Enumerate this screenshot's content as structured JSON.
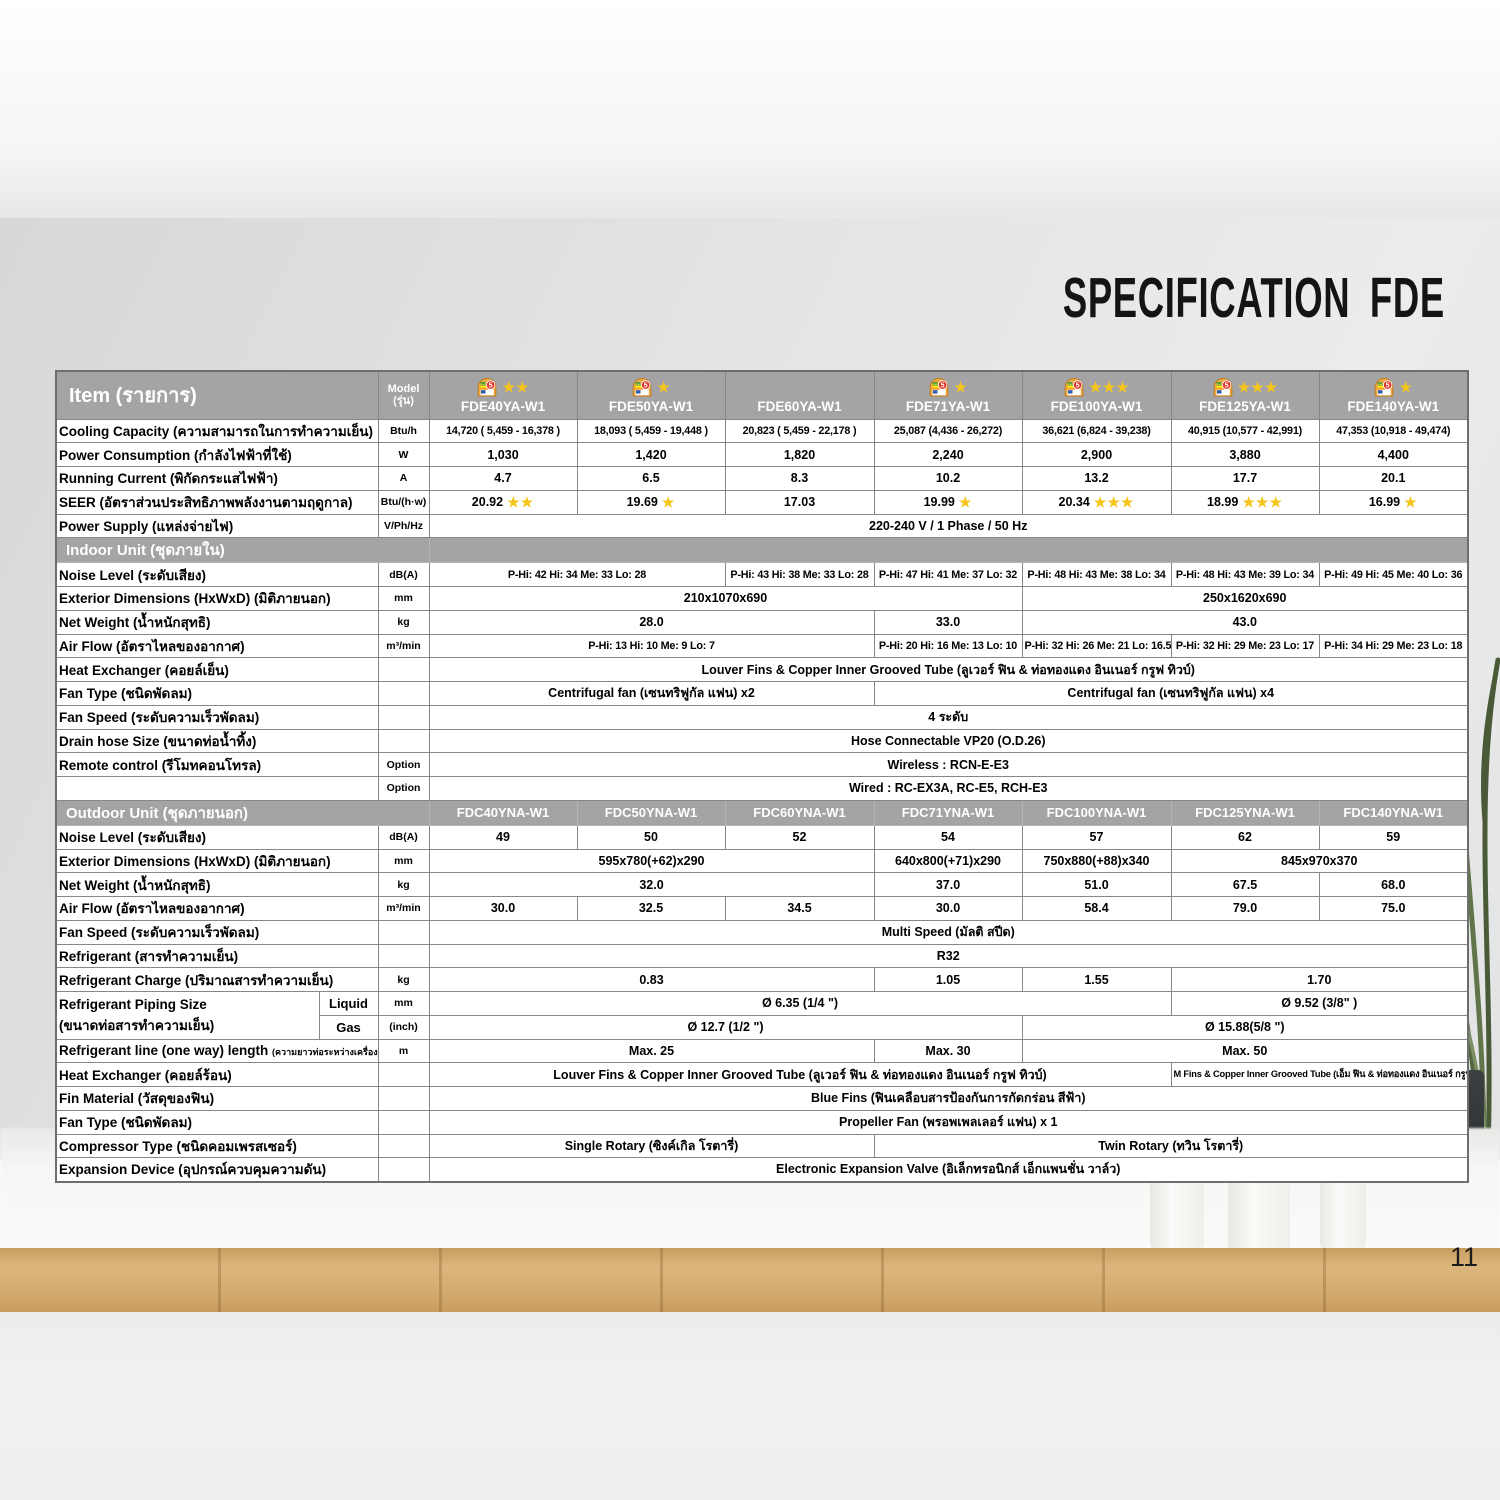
{
  "page": {
    "title": "SPECIFICATION FDE",
    "page_number": "11"
  },
  "colors": {
    "star_gold": "#F5C51C",
    "band_gray": "#A4A4A6",
    "wood": "#D2A76B",
    "title_color": "#141414"
  },
  "table": {
    "item_header": "Item (รายการ)",
    "model_header": "Model (รุ่น)",
    "indoor_models": [
      {
        "name": "FDE40YA-W1",
        "has_label": true,
        "stars": 2
      },
      {
        "name": "FDE50YA-W1",
        "has_label": true,
        "stars": 1
      },
      {
        "name": "FDE60YA-W1",
        "has_label": false,
        "stars": 0
      },
      {
        "name": "FDE71YA-W1",
        "has_label": true,
        "stars": 1
      },
      {
        "name": "FDE100YA-W1",
        "has_label": true,
        "stars": 3
      },
      {
        "name": "FDE125YA-W1",
        "has_label": true,
        "stars": 3
      },
      {
        "name": "FDE140YA-W1",
        "has_label": true,
        "stars": 1
      }
    ],
    "rows": [
      {
        "label": "Cooling Capacity (ความสามารถในการทำความเย็น)",
        "unit": "Btu/h",
        "cellClass": "xs",
        "cells": [
          {
            "t": "14,720 ( 5,459 - 16,378 )"
          },
          {
            "t": "18,093 ( 5,459 - 19,448 )"
          },
          {
            "t": "20,823 ( 5,459 - 22,178 )"
          },
          {
            "t": "25,087 (4,436 - 26,272)"
          },
          {
            "t": "36,621 (6,824 - 39,238)"
          },
          {
            "t": "40,915 (10,577 - 42,991)"
          },
          {
            "t": "47,353 (10,918 - 49,474)"
          }
        ]
      },
      {
        "label": "Power Consumption (กำลังไฟฟ้าที่ใช้)",
        "unit": "W",
        "cells": [
          {
            "t": "1,030"
          },
          {
            "t": "1,420"
          },
          {
            "t": "1,820"
          },
          {
            "t": "2,240"
          },
          {
            "t": "2,900"
          },
          {
            "t": "3,880"
          },
          {
            "t": "4,400"
          }
        ]
      },
      {
        "label": "Running Current (พิกัดกระแสไฟฟ้า)",
        "unit": "A",
        "cells": [
          {
            "t": "4.7"
          },
          {
            "t": "6.5"
          },
          {
            "t": "8.3"
          },
          {
            "t": "10.2"
          },
          {
            "t": "13.2"
          },
          {
            "t": "17.7"
          },
          {
            "t": "20.1"
          }
        ]
      },
      {
        "label": "SEER (อัตราส่วนประสิทธิภาพพลังงานตามฤดูกาล)",
        "unit": "Btu/(h·w)",
        "cells": [
          {
            "t": "20.92",
            "stars": 2
          },
          {
            "t": "19.69",
            "stars": 1
          },
          {
            "t": "17.03"
          },
          {
            "t": "19.99",
            "stars": 1
          },
          {
            "t": "20.34",
            "stars": 3
          },
          {
            "t": "18.99",
            "stars": 3
          },
          {
            "t": "16.99",
            "stars": 1
          }
        ]
      },
      {
        "label": "Power Supply (แหล่งจ่ายไฟ)",
        "unit": "V/Ph/Hz",
        "cells": [
          {
            "t": "220-240 V / 1 Phase / 50 Hz",
            "span": 7
          }
        ]
      },
      {
        "type": "section",
        "label": "Indoor Unit (ชุดภายใน)"
      },
      {
        "label": "Noise Level (ระดับเสียง)",
        "unit": "dB(A)",
        "cellClass": "xs",
        "cells": [
          {
            "t": "P-Hi: 42 Hi: 34 Me: 33 Lo: 28",
            "span": 2
          },
          {
            "t": "P-Hi: 43 Hi: 38 Me: 33 Lo: 28"
          },
          {
            "t": "P-Hi: 47 Hi: 41 Me: 37 Lo: 32"
          },
          {
            "t": "P-Hi: 48 Hi: 43 Me: 38 Lo: 34"
          },
          {
            "t": "P-Hi: 48 Hi: 43 Me: 39 Lo: 34"
          },
          {
            "t": "P-Hi: 49 Hi: 45 Me: 40 Lo: 36"
          }
        ]
      },
      {
        "label": "Exterior Dimensions (HxWxD) (มิติภายนอก)",
        "unit": "mm",
        "cells": [
          {
            "t": "210x1070x690",
            "span": 4
          },
          {
            "t": "250x1620x690",
            "span": 3
          }
        ]
      },
      {
        "label": "Net Weight (น้ำหนักสุทธิ)",
        "unit": "kg",
        "cells": [
          {
            "t": "28.0",
            "span": 3
          },
          {
            "t": "33.0"
          },
          {
            "t": "43.0",
            "span": 3
          }
        ]
      },
      {
        "label": "Air Flow (อัตราไหลของอากาศ)",
        "unit": "m³/min",
        "cellClass": "xs",
        "cells": [
          {
            "t": "P-Hi: 13 Hi: 10 Me: 9 Lo: 7",
            "span": 3
          },
          {
            "t": "P-Hi: 20 Hi: 16 Me: 13 Lo: 10"
          },
          {
            "t": "P-Hi: 32 Hi: 26 Me: 21 Lo: 16.5"
          },
          {
            "t": "P-Hi: 32 Hi: 29 Me: 23 Lo: 17"
          },
          {
            "t": "P-Hi: 34 Hi: 29 Me: 23 Lo: 18"
          }
        ]
      },
      {
        "label": "Heat Exchanger (คอยล์เย็น)",
        "unit": "",
        "cells": [
          {
            "t": "Louver Fins & Copper Inner Grooved Tube (ลูเวอร์ ฟิน & ท่อทองแดง อินเนอร์ กรูฟ ทิวบ์)",
            "span": 7
          }
        ]
      },
      {
        "label": "Fan Type (ชนิดพัดลม)",
        "unit": "",
        "cells": [
          {
            "t": "Centrifugal fan (เซนทริฟูกัล แฟน) x2",
            "span": 3
          },
          {
            "t": "Centrifugal fan (เซนทริฟูกัล แฟน) x4",
            "span": 4
          }
        ]
      },
      {
        "label": "Fan Speed (ระดับความเร็วพัดลม)",
        "unit": "",
        "cells": [
          {
            "t": "4 ระดับ",
            "span": 7
          }
        ]
      },
      {
        "label": "Drain hose Size (ขนาดท่อน้ำทิ้ง)",
        "unit": "",
        "cells": [
          {
            "t": "Hose Connectable VP20 (O.D.26)",
            "span": 7
          }
        ]
      },
      {
        "label": "Remote control (รีโมทคอนโทรล)",
        "unit": "Option",
        "cells": [
          {
            "t": "Wireless : RCN-E-E3",
            "span": 7
          }
        ]
      },
      {
        "label": "",
        "unit": "Option",
        "cells": [
          {
            "t": "Wired : RC-EX3A, RC-E5, RCH-E3",
            "span": 7
          }
        ]
      },
      {
        "type": "section",
        "label": "Outdoor Unit (ชุดภายนอก)",
        "models": [
          "FDC40YNA-W1",
          "FDC50YNA-W1",
          "FDC60YNA-W1",
          "FDC71YNA-W1",
          "FDC100YNA-W1",
          "FDC125YNA-W1",
          "FDC140YNA-W1"
        ]
      },
      {
        "label": "Noise Level (ระดับเสียง)",
        "unit": "dB(A)",
        "cells": [
          {
            "t": "49"
          },
          {
            "t": "50"
          },
          {
            "t": "52"
          },
          {
            "t": "54"
          },
          {
            "t": "57"
          },
          {
            "t": "62"
          },
          {
            "t": "59"
          }
        ]
      },
      {
        "label": "Exterior Dimensions (HxWxD) (มิติภายนอก)",
        "unit": "mm",
        "cells": [
          {
            "t": "595x780(+62)x290",
            "span": 3
          },
          {
            "t": "640x800(+71)x290"
          },
          {
            "t": "750x880(+88)x340"
          },
          {
            "t": "845x970x370",
            "span": 2
          }
        ]
      },
      {
        "label": "Net Weight (น้ำหนักสุทธิ)",
        "unit": "kg",
        "cells": [
          {
            "t": "32.0",
            "span": 3
          },
          {
            "t": "37.0"
          },
          {
            "t": "51.0"
          },
          {
            "t": "67.5"
          },
          {
            "t": "68.0"
          }
        ]
      },
      {
        "label": "Air Flow (อัตราไหลของอากาศ)",
        "unit": "m³/min",
        "cells": [
          {
            "t": "30.0"
          },
          {
            "t": "32.5"
          },
          {
            "t": "34.5"
          },
          {
            "t": "30.0"
          },
          {
            "t": "58.4"
          },
          {
            "t": "79.0"
          },
          {
            "t": "75.0"
          }
        ]
      },
      {
        "label": "Fan Speed (ระดับความเร็วพัดลม)",
        "unit": "",
        "cells": [
          {
            "t": "Multi Speed (มัลติ สปีด)",
            "span": 7
          }
        ]
      },
      {
        "label": "Refrigerant (สารทำความเย็น)",
        "unit": "",
        "cells": [
          {
            "t": "R32",
            "span": 7
          }
        ]
      },
      {
        "label": "Refrigerant Charge (ปริมาณสารทำความเย็น)",
        "unit": "kg",
        "cells": [
          {
            "t": "0.83",
            "span": 3
          },
          {
            "t": "1.05"
          },
          {
            "t": "1.55"
          },
          {
            "t": "1.70",
            "span": 2
          }
        ]
      },
      {
        "label": "Refrigerant Piping Size",
        "label2": "(ขนาดท่อสารทำความเย็น)",
        "sub": "Liquid",
        "unit": "mm",
        "cells": [
          {
            "t": "Ø 6.35 (1/4 \")",
            "span": 5
          },
          {
            "t": "Ø 9.52 (3/8\" )",
            "span": 2
          }
        ]
      },
      {
        "cont": true,
        "sub": "Gas",
        "unit": "(inch)",
        "cells": [
          {
            "t": "Ø 12.7 (1/2 \")",
            "span": 4
          },
          {
            "t": "Ø 15.88(5/8 \")",
            "span": 3
          }
        ]
      },
      {
        "label": "Refrigerant line (one way) length",
        "label_small": "(ความยาวท่อระหว่างเครื่อง)",
        "unit": "m",
        "cells": [
          {
            "t": "Max. 25",
            "span": 3
          },
          {
            "t": "Max. 30"
          },
          {
            "t": "Max. 50",
            "span": 3
          }
        ]
      },
      {
        "label": "Heat Exchanger (คอยล์ร้อน)",
        "unit": "",
        "cells": [
          {
            "t": "Louver Fins & Copper Inner Grooved Tube (ลูเวอร์ ฟิน & ท่อทองแดง อินเนอร์ กรูฟ ทิวบ์)",
            "span": 5
          },
          {
            "t": "M Fins & Copper Inner Grooved Tube (เอ็ม ฟิน & ท่อทองแดง อินเนอร์ กรูฟ ทิวบ์)",
            "span": 2,
            "cls": "tiny"
          }
        ]
      },
      {
        "label": "Fin Material (วัสดุของฟิน)",
        "unit": "",
        "cells": [
          {
            "t": "Blue Fins (ฟินเคลือบสารป้องกันการกัดกร่อน สีฟ้า)",
            "span": 7
          }
        ]
      },
      {
        "label": "Fan Type (ชนิดพัดลม)",
        "unit": "",
        "cells": [
          {
            "t": "Propeller Fan (พรอพเพลเลอร์ แฟน) x 1",
            "span": 7
          }
        ]
      },
      {
        "label": "Compressor Type (ชนิดคอมเพรสเซอร์)",
        "unit": "",
        "cells": [
          {
            "t": "Single Rotary (ซิงค์เกิล โรตารี่)",
            "span": 3
          },
          {
            "t": "Twin Rotary (ทวิน โรตารี่)",
            "span": 4
          }
        ]
      },
      {
        "label": "Expansion Device (อุปกรณ์ควบคุมความดัน)",
        "unit": "",
        "cells": [
          {
            "t": "Electronic Expansion Valve (อิเล็กทรอนิกส์ เอ็กแพนชั่น วาล์ว)",
            "span": 7
          }
        ]
      }
    ]
  }
}
